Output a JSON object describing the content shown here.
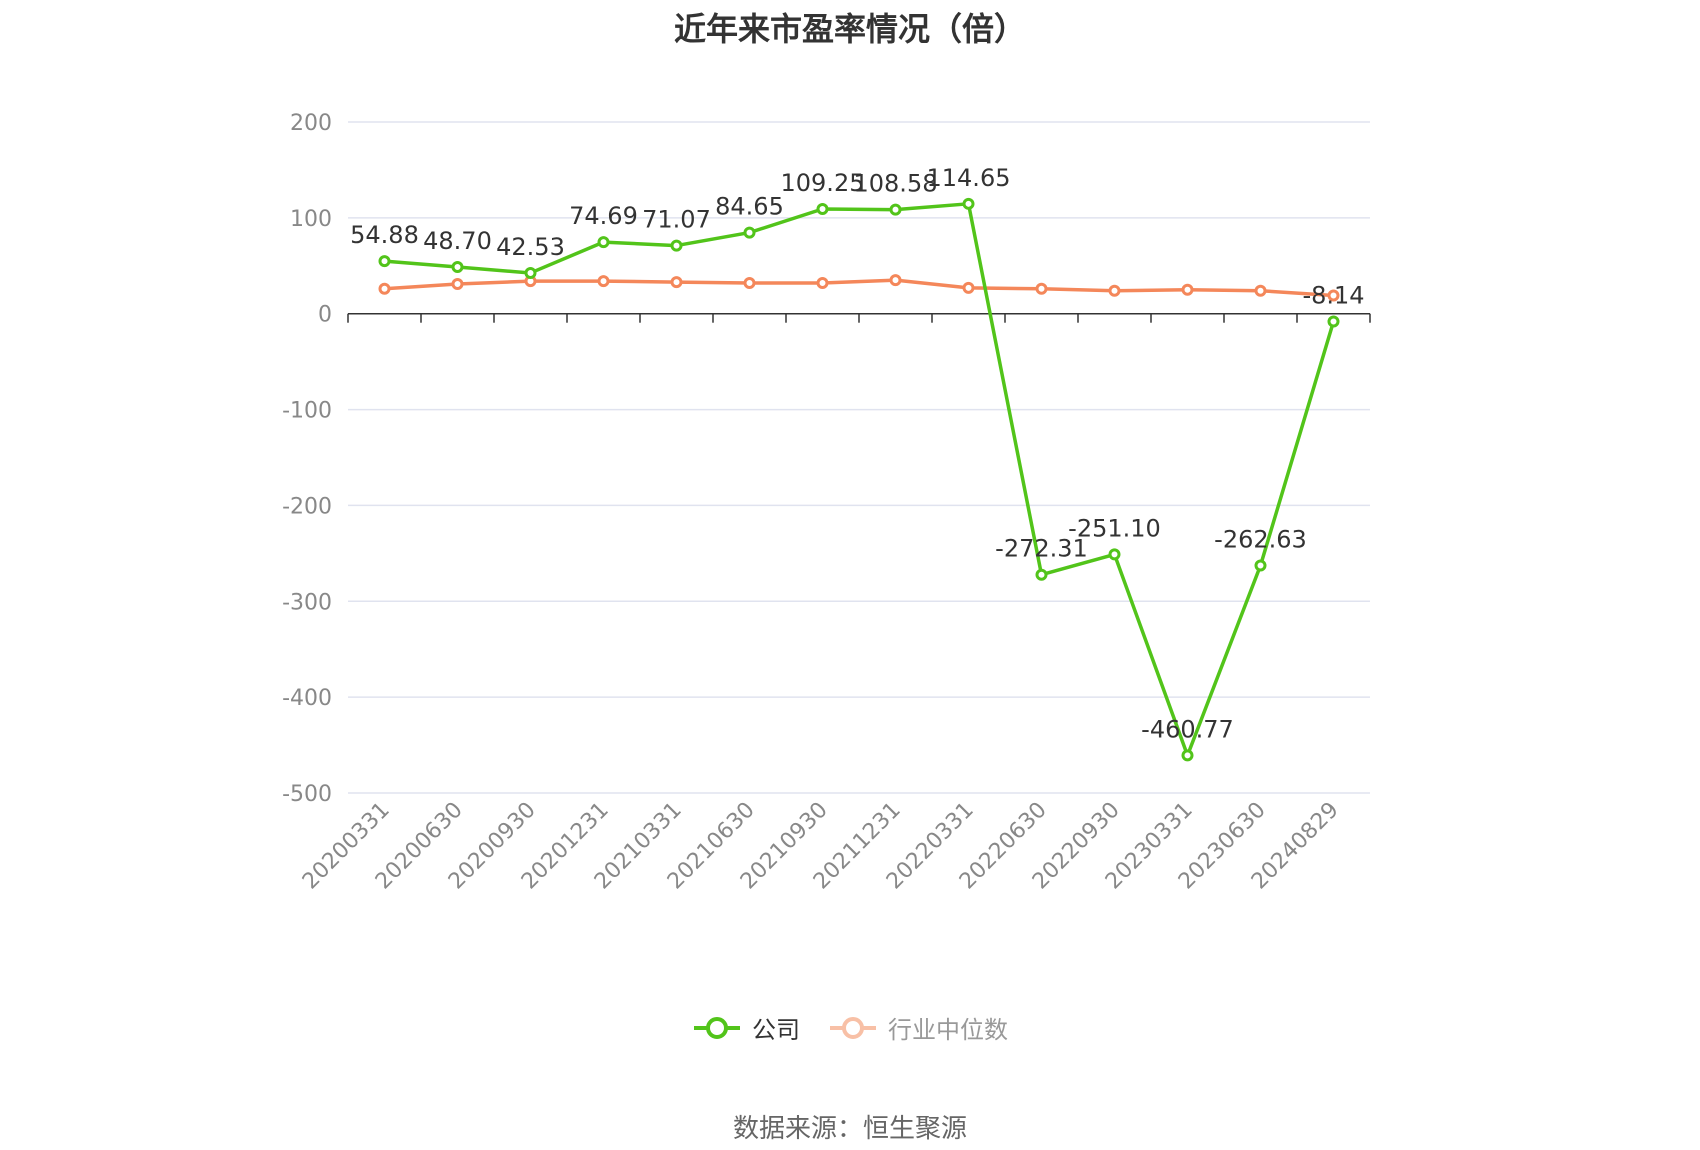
{
  "title": "近年来市盈率情况（倍）",
  "source": "数据来源：恒生聚源",
  "colors": {
    "company": "#52c41a",
    "industry": "#f4875a",
    "grid": "#e0e3ef",
    "axis": "#333333"
  },
  "chart_data": {
    "type": "line",
    "title": "近年来市盈率情况（倍）",
    "categories": [
      "20200331",
      "20200630",
      "20200930",
      "20201231",
      "20210331",
      "20210630",
      "20210930",
      "20211231",
      "20220331",
      "20220630",
      "20220930",
      "20230331",
      "20230630",
      "20240829"
    ],
    "ylim": [
      -500,
      200
    ],
    "yticks": [
      200,
      100,
      0,
      -100,
      -200,
      -300,
      -400,
      -500
    ],
    "grid": true,
    "legend": "bottom-center",
    "series": [
      {
        "name": "公司",
        "values": [
          54.88,
          48.7,
          42.53,
          74.69,
          71.07,
          84.65,
          109.25,
          108.58,
          114.65,
          -272.31,
          -251.1,
          -460.77,
          -262.63,
          -8.14
        ],
        "labels": [
          "54.88",
          "48.70",
          "42.53",
          "74.69",
          "71.07",
          "84.65",
          "109.25",
          "108.58",
          "114.65",
          "-272.31",
          "-251.10",
          "-460.77",
          "-262.63",
          "-8.14"
        ]
      },
      {
        "name": "行业中位数",
        "values": [
          26,
          31,
          34,
          34,
          33,
          32,
          32,
          35,
          27,
          26,
          24,
          25,
          24,
          19
        ]
      }
    ]
  }
}
